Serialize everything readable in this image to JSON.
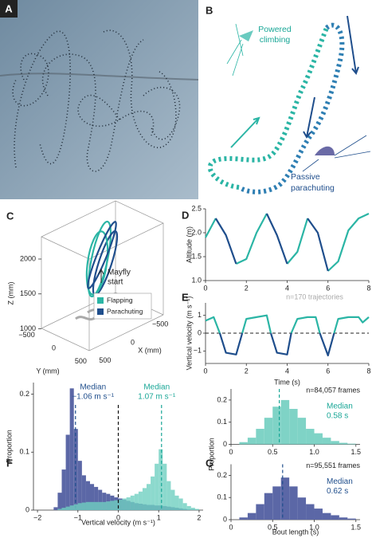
{
  "panel_a": {
    "label": "A"
  },
  "panel_b": {
    "label": "B",
    "climbing": [
      "Powered",
      "climbing"
    ],
    "parachuting": [
      "Passive",
      "parachuting"
    ]
  },
  "chart_data": [
    {
      "type": "trajectory3d",
      "label": "C",
      "zlabel": "Z (mm)",
      "ylabel": "Y (mm)",
      "xlabel": "X (mm)",
      "zlim": [
        800,
        2400
      ],
      "zticks": [
        1000,
        1500,
        2000
      ],
      "ylim": [
        -700,
        700
      ],
      "yticks": [
        {
          "value": -500,
          "label": "−500"
        },
        0,
        500
      ],
      "xlim": [
        -700,
        700
      ],
      "xticks": [
        {
          "value": -500,
          "label": "−500"
        },
        0,
        500
      ],
      "annotation": [
        "Mayfly",
        "start"
      ],
      "series": [
        {
          "name": "Flapping",
          "color": "#2bb5a5"
        },
        {
          "name": "Parachuting",
          "color": "#1f4e8c"
        }
      ]
    },
    {
      "type": "line",
      "label": "D",
      "ylabel": "Altitude (m)",
      "x": [
        0,
        0.5,
        1,
        1.5,
        2,
        2.5,
        3,
        3.5,
        4,
        4.5,
        5,
        5.5,
        6,
        6.5,
        7,
        7.5,
        8
      ],
      "series": [
        {
          "color": "#2bb5a5",
          "values": [
            1.9,
            2.3,
            null,
            1.35,
            1.45,
            2.0,
            2.4,
            null,
            1.35,
            1.6,
            2.3,
            null,
            1.2,
            1.4,
            2.05,
            2.3,
            2.4
          ]
        },
        {
          "color": "#1f4e8c",
          "values": [
            null,
            2.3,
            1.95,
            1.35,
            null,
            null,
            2.4,
            1.95,
            1.35,
            null,
            2.3,
            2.0,
            1.2,
            null,
            null,
            null,
            null
          ]
        }
      ],
      "xlim": [
        0,
        8
      ],
      "ylim": [
        1,
        2.5
      ],
      "xticks": [
        0,
        2,
        4,
        6,
        8
      ],
      "yticks": [
        {
          "value": 1,
          "label": "1.0"
        },
        1.5,
        {
          "value": 2,
          "label": "2.0"
        },
        2.5
      ]
    },
    {
      "type": "line",
      "label": "E",
      "ylabel": "Vertical velocity (m s⁻¹)",
      "xlabel": "Time (s)",
      "annotation": "n=170 trajectories",
      "x": [
        0,
        0.4,
        0.7,
        1.0,
        1.5,
        1.8,
        2.0,
        2.5,
        3.0,
        3.2,
        3.5,
        4.0,
        4.2,
        4.5,
        5.0,
        5.4,
        5.6,
        6.0,
        6.3,
        6.5,
        7.0,
        7.5,
        7.7,
        8.0
      ],
      "series": [
        {
          "color": "#2bb5a5",
          "values": [
            0.7,
            0.9,
            0.0,
            null,
            null,
            0.0,
            0.8,
            0.9,
            1.0,
            0.0,
            null,
            null,
            0.0,
            0.8,
            0.9,
            0.9,
            0.0,
            null,
            0.0,
            0.8,
            0.9,
            0.9,
            0.6,
            0.9
          ]
        },
        {
          "color": "#1f4e8c",
          "values": [
            null,
            null,
            0.0,
            -1.1,
            -1.2,
            0.0,
            null,
            null,
            null,
            0.0,
            -1.1,
            -1.2,
            0.0,
            null,
            null,
            null,
            0.0,
            -1.25,
            0.0,
            null,
            null,
            null,
            null,
            null
          ]
        }
      ],
      "xlim": [
        0,
        8
      ],
      "ylim": [
        -1.7,
        1.7
      ],
      "xticks": [
        0,
        2,
        4,
        6,
        8
      ],
      "yticks": [
        {
          "value": -1,
          "label": "−1"
        },
        0,
        1
      ],
      "reference_line": 0
    },
    {
      "type": "histogram",
      "overlay": true,
      "label": "F",
      "ylabel": "Proportion",
      "xlabel": "Vertical velocity (m s⁻¹)",
      "bins": [
        -1.6,
        -1.5,
        -1.4,
        -1.3,
        -1.2,
        -1.1,
        -1.0,
        -0.9,
        -0.8,
        -0.7,
        -0.6,
        -0.5,
        -0.4,
        -0.3,
        -0.2,
        -0.1,
        0.0,
        0.1,
        0.2,
        0.3,
        0.4,
        0.5,
        0.6,
        0.7,
        0.8,
        0.9,
        1.0,
        1.1,
        1.2,
        1.3,
        1.4,
        1.5,
        1.6,
        1.7,
        1.8,
        1.9,
        2.0
      ],
      "series": [
        {
          "color": "#5b67a6",
          "text_color": "#1f4e8c",
          "median_title": "Median",
          "median": {
            "value": -1.06,
            "label": "−1.06 m s⁻¹"
          },
          "values": [
            0.005,
            0.03,
            0.07,
            0.13,
            0.21,
            0.14,
            0.085,
            0.06,
            0.05,
            0.045,
            0.04,
            0.035,
            0.03,
            0.028,
            0.025,
            0.022,
            0.02,
            0.018,
            0.016,
            0.014,
            0.012,
            0.011,
            0.01,
            0.009,
            0.009,
            0.008,
            0.008,
            0.007,
            0.006,
            0.005,
            0.004,
            0.003,
            0.002,
            0.001,
            0.001,
            0
          ]
        },
        {
          "color": "#6fcfc0",
          "opacity": 0.8,
          "text_color": "#1aa797",
          "median_title": "Median",
          "median": {
            "value": 1.07,
            "label": "1.07 m s⁻¹"
          },
          "values": [
            0,
            0.002,
            0.004,
            0.006,
            0.008,
            0.01,
            0.012,
            0.013,
            0.014,
            0.014,
            0.014,
            0.014,
            0.014,
            0.015,
            0.016,
            0.017,
            0.018,
            0.02,
            0.022,
            0.025,
            0.028,
            0.032,
            0.038,
            0.045,
            0.058,
            0.08,
            0.105,
            0.08,
            0.05,
            0.035,
            0.025,
            0.02,
            0.012,
            0.007,
            0.004,
            0.002
          ]
        }
      ],
      "xlim": [
        -2.1,
        2.1
      ],
      "ylim": [
        0,
        0.22
      ],
      "xticks": [
        {
          "value": -2,
          "label": "−2"
        },
        {
          "value": -1,
          "label": "−1"
        },
        0,
        1,
        2
      ],
      "yticks": [
        0,
        0.1,
        0.2
      ],
      "reference_line": 0
    },
    {
      "type": "histogram",
      "overlay": false,
      "label": "G",
      "ylabel": "Proportion",
      "xlabel": "Bout length (s)",
      "bins": [
        0.1,
        0.2,
        0.3,
        0.4,
        0.5,
        0.6,
        0.7,
        0.8,
        0.9,
        1.0,
        1.1,
        1.2,
        1.3,
        1.4,
        1.5
      ],
      "series": [
        {
          "color": "#7fd3c6",
          "text_color": "#1aa797",
          "annotation": "n=84,057 frames",
          "median_title": "Median",
          "median": {
            "value": 0.58,
            "label": "0.58 s"
          },
          "values": [
            0.01,
            0.03,
            0.07,
            0.12,
            0.17,
            0.2,
            0.16,
            0.12,
            0.07,
            0.05,
            0.03,
            0.015,
            0.007,
            0.003
          ]
        },
        {
          "color": "#5b67a6",
          "text_color": "#1f4e8c",
          "annotation": "n=95,551 frames",
          "median_title": "Median",
          "median": {
            "value": 0.62,
            "label": "0.62 s"
          },
          "values": [
            0.01,
            0.03,
            0.07,
            0.12,
            0.15,
            0.19,
            0.15,
            0.1,
            0.07,
            0.05,
            0.03,
            0.02,
            0.01,
            0.005
          ]
        }
      ],
      "xlim": [
        0,
        1.55
      ],
      "ylim": [
        0,
        0.25
      ],
      "xticks": [
        0,
        0.5,
        {
          "value": 1,
          "label": "1.0"
        },
        1.5
      ],
      "yticks": [
        0,
        0.1,
        0.2
      ]
    }
  ]
}
